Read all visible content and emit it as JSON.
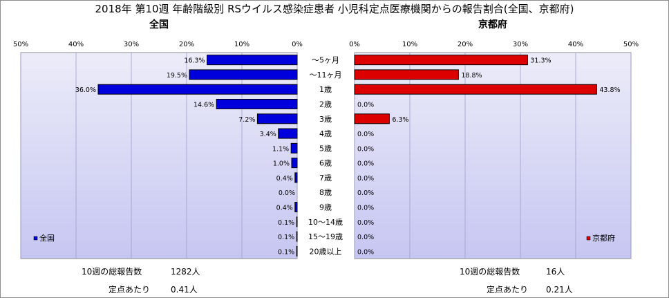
{
  "title": "2018年 第10週 年齢階級別 RSウイルス感染症患者 小児科定点医療機関からの報告割合(全国、京都府)",
  "chart_data": [
    {
      "type": "bar",
      "title": "全国",
      "orientation": "horizontal",
      "direction": "right-to-left",
      "xlim": [
        0,
        50
      ],
      "ticks": [
        "50%",
        "40%",
        "30%",
        "20%",
        "10%",
        "0%"
      ],
      "categories": [
        "〜5ヶ月",
        "〜11ヶ月",
        "1歳",
        "2歳",
        "3歳",
        "4歳",
        "5歳",
        "6歳",
        "7歳",
        "8歳",
        "9歳",
        "10〜14歳",
        "15〜19歳",
        "20歳以上"
      ],
      "series": [
        {
          "name": "全国",
          "values": [
            16.3,
            19.5,
            36.0,
            14.6,
            7.2,
            3.4,
            1.1,
            1.0,
            0.4,
            0.0,
            0.4,
            0.1,
            0.1,
            0.1
          ],
          "labels": [
            "16.3%",
            "19.5%",
            "36.0%",
            "14.6%",
            "7.2%",
            "3.4%",
            "1.1%",
            "1.0%",
            "0.4%",
            "0.0%",
            "0.4%",
            "0.1%",
            "0.1%",
            "0.1%"
          ]
        }
      ],
      "legend": "bottom-left",
      "grid": true,
      "colors": {
        "bar": "#0000dd",
        "plot_bg_top": "#ececf9",
        "plot_bg_bottom": "#c6c6f2"
      }
    },
    {
      "type": "bar",
      "title": "京都府",
      "orientation": "horizontal",
      "direction": "left-to-right",
      "xlim": [
        0,
        50
      ],
      "ticks": [
        "0%",
        "10%",
        "20%",
        "30%",
        "40%",
        "50%"
      ],
      "categories": [
        "〜5ヶ月",
        "〜11ヶ月",
        "1歳",
        "2歳",
        "3歳",
        "4歳",
        "5歳",
        "6歳",
        "7歳",
        "8歳",
        "9歳",
        "10〜14歳",
        "15〜19歳",
        "20歳以上"
      ],
      "series": [
        {
          "name": "京都府",
          "values": [
            31.3,
            18.8,
            43.8,
            0.0,
            6.3,
            0.0,
            0.0,
            0.0,
            0.0,
            0.0,
            0.0,
            0.0,
            0.0,
            0.0
          ],
          "labels": [
            "31.3%",
            "18.8%",
            "43.8%",
            "0.0%",
            "6.3%",
            "0.0%",
            "0.0%",
            "0.0%",
            "0.0%",
            "0.0%",
            "0.0%",
            "0.0%",
            "0.0%",
            "0.0%"
          ]
        }
      ],
      "legend": "bottom-right",
      "grid": true,
      "colors": {
        "bar": "#dd0000",
        "plot_bg_top": "#ececf9",
        "plot_bg_bottom": "#c6c6f2"
      }
    }
  ],
  "footer": {
    "national": {
      "total_label": "10週の総報告数",
      "total_value": "1282人",
      "per_label": "定点あたり",
      "per_value": "0.41人"
    },
    "kyoto": {
      "total_label": "10週の総報告数",
      "total_value": "16人",
      "per_label": "定点あたり",
      "per_value": "0.21人"
    }
  }
}
